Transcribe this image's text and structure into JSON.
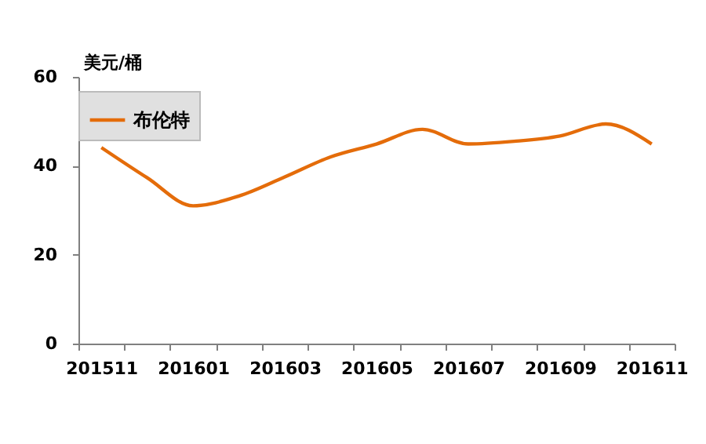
{
  "chart_data": {
    "type": "line",
    "ylabel": "美元/桶",
    "categories": [
      "201511",
      null,
      "201601",
      null,
      "201603",
      null,
      "201605",
      null,
      "201607",
      null,
      "201609",
      null,
      "201611"
    ],
    "series": [
      {
        "name": "布伦特",
        "color": "#e46c0a",
        "values": [
          44.1,
          37.3,
          31.0,
          33.2,
          37.5,
          42.0,
          44.9,
          48.2,
          44.9,
          45.5,
          46.7,
          49.4,
          44.9
        ]
      }
    ],
    "ylim": [
      0,
      60
    ],
    "yticks": [
      0,
      20,
      40,
      60
    ],
    "grid": false,
    "legend": "top",
    "marker": "none",
    "line_style": "solid"
  }
}
